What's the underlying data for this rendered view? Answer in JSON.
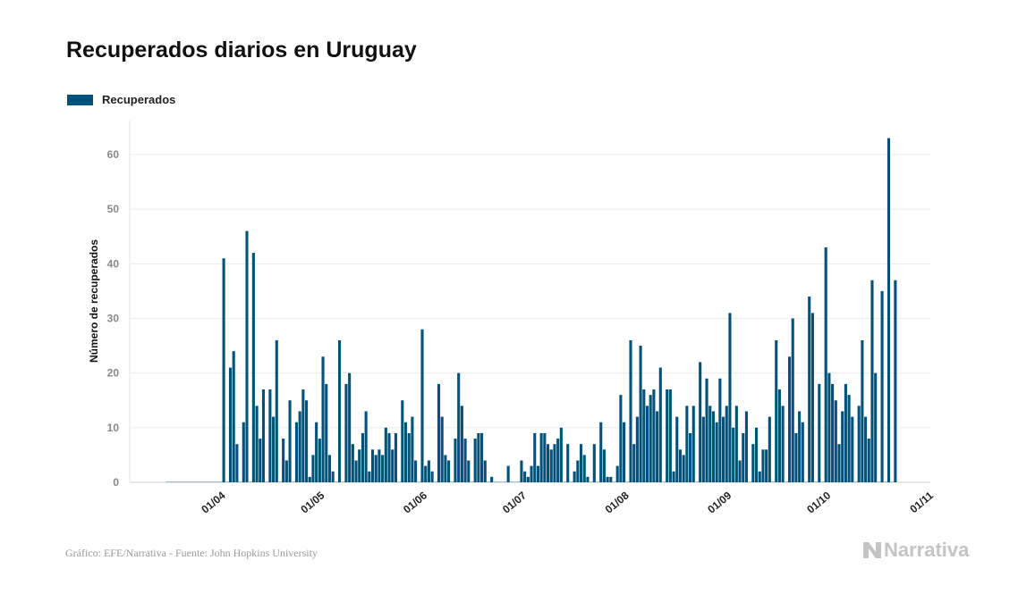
{
  "chart_data": {
    "type": "bar",
    "title": "Recuperados diarios en Uruguay",
    "legend": [
      "Recuperados"
    ],
    "legend_placement": "top-left",
    "xlabel": "",
    "ylabel": "Número de recuperados",
    "ylim": [
      0,
      66
    ],
    "yticks": [
      0,
      10,
      20,
      30,
      40,
      50,
      60
    ],
    "xlim": [
      "2020-03-04",
      "2020-11-01"
    ],
    "xticks": [
      {
        "date": "2020-04-01",
        "label": "01/04"
      },
      {
        "date": "2020-05-01",
        "label": "01/05"
      },
      {
        "date": "2020-06-01",
        "label": "01/06"
      },
      {
        "date": "2020-07-01",
        "label": "01/07"
      },
      {
        "date": "2020-08-01",
        "label": "01/08"
      },
      {
        "date": "2020-09-01",
        "label": "01/09"
      },
      {
        "date": "2020-10-01",
        "label": "01/10"
      },
      {
        "date": "2020-11-01",
        "label": "01/11"
      }
    ],
    "grid": true,
    "color": "#00527a",
    "series": [
      {
        "name": "Recuperados",
        "start_date": "2020-03-15",
        "values": [
          0,
          0,
          0,
          0,
          0,
          0,
          0,
          0,
          0,
          0,
          0,
          0,
          0,
          0,
          0,
          0,
          0,
          41,
          0,
          21,
          24,
          7,
          0,
          11,
          46,
          0,
          42,
          14,
          8,
          17,
          0,
          17,
          12,
          26,
          0,
          8,
          4,
          15,
          0,
          11,
          13,
          17,
          15,
          1,
          5,
          11,
          8,
          23,
          18,
          5,
          2,
          0,
          26,
          0,
          18,
          20,
          7,
          4,
          6,
          9,
          13,
          2,
          6,
          5,
          6,
          5,
          10,
          9,
          6,
          9,
          0,
          15,
          11,
          9,
          12,
          4,
          0,
          28,
          3,
          4,
          2,
          0,
          18,
          12,
          5,
          4,
          0,
          8,
          20,
          14,
          8,
          4,
          0,
          8,
          9,
          9,
          4,
          0,
          1,
          0,
          0,
          0,
          0,
          3,
          0,
          0,
          0,
          4,
          2,
          1,
          3,
          9,
          3,
          9,
          9,
          7,
          6,
          7,
          8,
          10,
          0,
          7,
          0,
          2,
          4,
          7,
          5,
          1,
          0,
          7,
          0,
          11,
          6,
          1,
          1,
          0,
          3,
          16,
          11,
          0,
          26,
          7,
          12,
          25,
          17,
          14,
          16,
          17,
          13,
          21,
          0,
          17,
          17,
          2,
          12,
          6,
          5,
          14,
          9,
          14,
          0,
          22,
          12,
          19,
          14,
          13,
          11,
          19,
          12,
          14,
          31,
          10,
          14,
          4,
          9,
          13,
          0,
          7,
          10,
          2,
          6,
          6,
          12,
          0,
          26,
          17,
          14,
          0,
          23,
          30,
          9,
          13,
          11,
          0,
          34,
          31,
          0,
          18,
          0,
          43,
          20,
          18,
          15,
          7,
          13,
          18,
          16,
          12,
          0,
          14,
          26,
          12,
          8,
          37,
          20,
          0,
          35,
          0,
          63,
          0,
          37
        ]
      }
    ]
  },
  "footer": {
    "source": "Gráfico: EFE/Narrativa - Fuente: John Hopkins University",
    "logo": "Narrativa"
  }
}
